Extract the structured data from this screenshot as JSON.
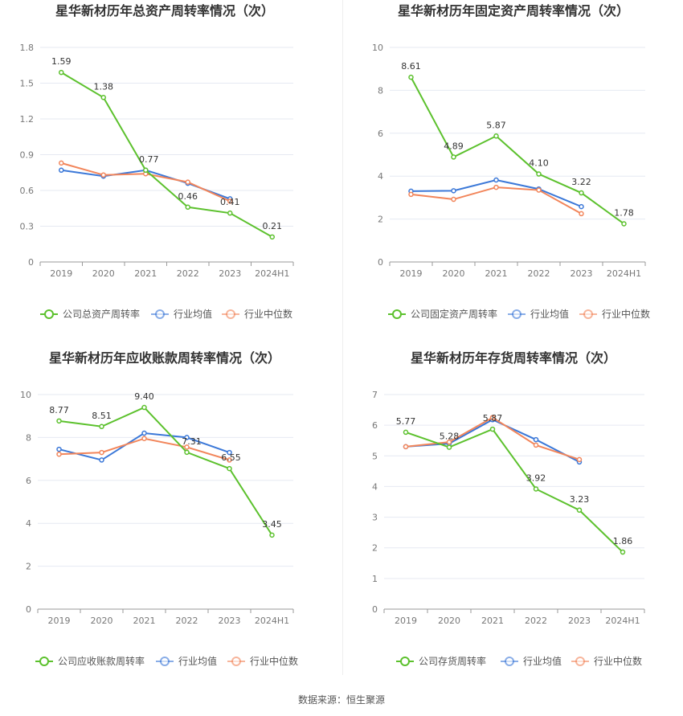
{
  "chart_data": [
    {
      "type": "line",
      "title": "星华新材历年总资产周转率情况（次）",
      "categories": [
        "2019",
        "2020",
        "2021",
        "2022",
        "2023",
        "2024H1"
      ],
      "y_ticks": [
        "0",
        "0.3",
        "0.6",
        "0.9",
        "1.2",
        "1.5",
        "1.8"
      ],
      "ylim": [
        0,
        1.8
      ],
      "series": [
        {
          "name": "公司总资产周转率",
          "color": "#5cc12d",
          "values": [
            1.59,
            1.38,
            0.77,
            0.46,
            0.41,
            0.21
          ],
          "labels": [
            "1.59",
            "1.38",
            "0.77",
            "0.46",
            "0.41",
            "0.21"
          ]
        },
        {
          "name": "行业均值",
          "color": "#3b78d8",
          "values": [
            0.77,
            0.72,
            0.77,
            0.66,
            0.53,
            null
          ]
        },
        {
          "name": "行业中位数",
          "color": "#f2855a",
          "values": [
            0.83,
            0.73,
            0.74,
            0.67,
            0.51,
            null
          ]
        }
      ]
    },
    {
      "type": "line",
      "title": "星华新材历年固定资产周转率情况（次）",
      "categories": [
        "2019",
        "2020",
        "2021",
        "2022",
        "2023",
        "2024H1"
      ],
      "y_ticks": [
        "0",
        "2",
        "4",
        "6",
        "8",
        "10"
      ],
      "ylim": [
        0,
        10
      ],
      "series": [
        {
          "name": "公司固定资产周转率",
          "color": "#5cc12d",
          "values": [
            8.61,
            4.89,
            5.87,
            4.1,
            3.22,
            1.78
          ],
          "labels": [
            "8.61",
            "4.89",
            "5.87",
            "4.10",
            "3.22",
            "1.78"
          ]
        },
        {
          "name": "行业均值",
          "color": "#3b78d8",
          "values": [
            3.3,
            3.32,
            3.82,
            3.4,
            2.58,
            null
          ]
        },
        {
          "name": "行业中位数",
          "color": "#f2855a",
          "values": [
            3.15,
            2.92,
            3.48,
            3.35,
            2.25,
            null
          ]
        }
      ]
    },
    {
      "type": "line",
      "title": "星华新材历年应收账款周转率情况（次）",
      "categories": [
        "2019",
        "2020",
        "2021",
        "2022",
        "2023",
        "2024H1"
      ],
      "y_ticks": [
        "0",
        "2",
        "4",
        "6",
        "8",
        "10"
      ],
      "ylim": [
        0,
        10
      ],
      "series": [
        {
          "name": "公司应收账款周转率",
          "color": "#5cc12d",
          "values": [
            8.77,
            8.51,
            9.4,
            7.31,
            6.55,
            3.45
          ],
          "labels": [
            "8.77",
            "8.51",
            "9.40",
            "7.31",
            "6.55",
            "3.45"
          ]
        },
        {
          "name": "行业均值",
          "color": "#3b78d8",
          "values": [
            7.45,
            6.95,
            8.2,
            8.0,
            7.3,
            null
          ]
        },
        {
          "name": "行业中位数",
          "color": "#f2855a",
          "values": [
            7.22,
            7.3,
            7.95,
            7.55,
            6.95,
            null
          ]
        }
      ]
    },
    {
      "type": "line",
      "title": "星华新材历年存货周转率情况（次）",
      "categories": [
        "2019",
        "2020",
        "2021",
        "2022",
        "2023",
        "2024H1"
      ],
      "y_ticks": [
        "0",
        "1",
        "2",
        "3",
        "4",
        "5",
        "6",
        "7"
      ],
      "ylim": [
        0,
        7
      ],
      "series": [
        {
          "name": "公司存货周转率",
          "color": "#5cc12d",
          "values": [
            5.77,
            5.28,
            5.87,
            3.92,
            3.23,
            1.86
          ],
          "labels": [
            "5.77",
            "5.28",
            "5.87",
            "3.92",
            "3.23",
            "1.86"
          ]
        },
        {
          "name": "行业均值",
          "color": "#3b78d8",
          "values": [
            5.3,
            5.4,
            6.18,
            5.53,
            4.8,
            null
          ]
        },
        {
          "name": "行业中位数",
          "color": "#f2855a",
          "values": [
            5.3,
            5.45,
            6.25,
            5.35,
            4.88,
            null
          ]
        }
      ]
    }
  ],
  "footer": {
    "source": "数据来源：恒生聚源"
  }
}
